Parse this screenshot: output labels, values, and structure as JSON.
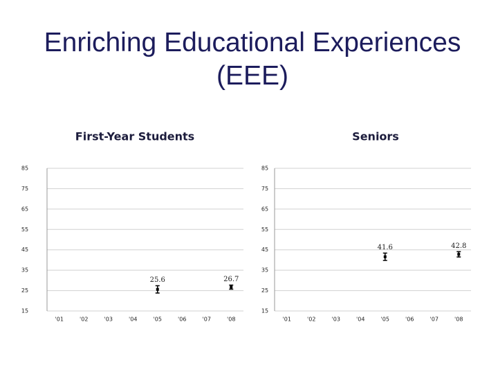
{
  "title": "Enriching Educational Experiences (EEE)",
  "chart_data": [
    {
      "type": "errorbar",
      "title": "First-Year Students",
      "categories": [
        "'01",
        "'02",
        "'03",
        "'04",
        "'05",
        "'06",
        "'07",
        "'08"
      ],
      "values": [
        null,
        null,
        null,
        null,
        25.6,
        null,
        null,
        26.7
      ],
      "errors": [
        null,
        null,
        null,
        null,
        1.8,
        null,
        null,
        1.0
      ],
      "color": "#000000",
      "ylim": [
        15,
        85
      ],
      "yticks": [
        15,
        25,
        35,
        45,
        55,
        65,
        75,
        85
      ],
      "grid": true
    },
    {
      "type": "errorbar",
      "title": "Seniors",
      "categories": [
        "'01",
        "'02",
        "'03",
        "'04",
        "'05",
        "'06",
        "'07",
        "'08"
      ],
      "values": [
        null,
        null,
        null,
        null,
        41.6,
        null,
        null,
        42.8
      ],
      "errors": [
        null,
        null,
        null,
        null,
        1.8,
        null,
        null,
        1.3
      ],
      "color": "#000000",
      "ylim": [
        15,
        85
      ],
      "yticks": [
        15,
        25,
        35,
        45,
        55,
        65,
        75,
        85
      ],
      "grid": true
    }
  ]
}
